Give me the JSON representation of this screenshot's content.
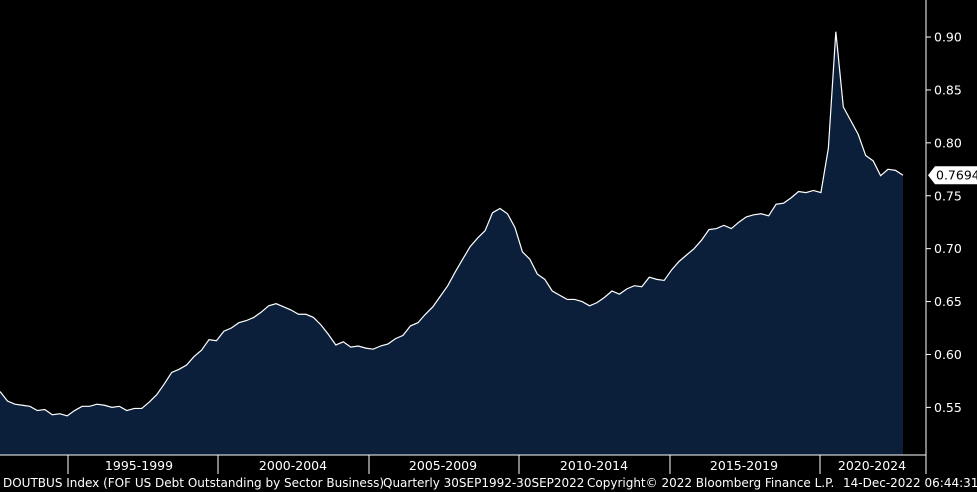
{
  "chart_data": {
    "type": "area",
    "ticker": "DOUTBUS Index (FOF US Debt Outstanding by Sector Business)",
    "frequency_range": "Quarterly 30SEP1992-30SEP2022",
    "last_value_label": "0.7694",
    "x_period_labels": [
      "1995-1999",
      "2000-2004",
      "2005-2009",
      "2010-2014",
      "2015-2019",
      "2020-2024"
    ],
    "yticks": [
      0.55,
      0.6,
      0.65,
      0.7,
      0.75,
      0.8,
      0.85,
      0.9
    ],
    "ytick_labels": [
      "0.55",
      "0.60",
      "0.65",
      "0.70",
      "0.75",
      "0.80",
      "0.85",
      "0.90"
    ],
    "ylim": [
      0.505,
      0.935
    ],
    "x_start": "1992Q3",
    "x_end": "2022Q3",
    "values": [
      0.565,
      0.556,
      0.553,
      0.552,
      0.551,
      0.547,
      0.548,
      0.543,
      0.544,
      0.542,
      0.547,
      0.551,
      0.551,
      0.553,
      0.552,
      0.55,
      0.551,
      0.547,
      0.549,
      0.549,
      0.555,
      0.562,
      0.572,
      0.583,
      0.586,
      0.59,
      0.598,
      0.604,
      0.614,
      0.613,
      0.622,
      0.625,
      0.63,
      0.632,
      0.635,
      0.64,
      0.646,
      0.648,
      0.645,
      0.642,
      0.638,
      0.638,
      0.635,
      0.628,
      0.619,
      0.609,
      0.612,
      0.607,
      0.608,
      0.606,
      0.605,
      0.608,
      0.61,
      0.615,
      0.618,
      0.627,
      0.63,
      0.638,
      0.645,
      0.655,
      0.665,
      0.678,
      0.69,
      0.702,
      0.71,
      0.717,
      0.734,
      0.738,
      0.733,
      0.72,
      0.697,
      0.69,
      0.676,
      0.671,
      0.66,
      0.656,
      0.652,
      0.652,
      0.65,
      0.646,
      0.649,
      0.654,
      0.66,
      0.657,
      0.662,
      0.665,
      0.664,
      0.673,
      0.671,
      0.67,
      0.68,
      0.688,
      0.694,
      0.7,
      0.708,
      0.718,
      0.719,
      0.722,
      0.719,
      0.725,
      0.73,
      0.732,
      0.733,
      0.731,
      0.742,
      0.743,
      0.748,
      0.754,
      0.753,
      0.755,
      0.753,
      0.795,
      0.905,
      0.834,
      0.821,
      0.808,
      0.788,
      0.783,
      0.769,
      0.775,
      0.774,
      0.7694
    ]
  },
  "footer": {
    "ticker": "DOUTBUS Index (FOF US Debt Outstanding by Sector Business)",
    "range": "Quarterly 30SEP1992-30SEP2022",
    "copyright": "Copyright© 2022 Bloomberg Finance L.P.",
    "timestamp": "14-Dec-2022 06:44:31"
  },
  "colors": {
    "background": "#000000",
    "area_fill": "#0b1f3b",
    "line": "#ffffff",
    "axis": "#ffffff",
    "text": "#ffffff"
  }
}
